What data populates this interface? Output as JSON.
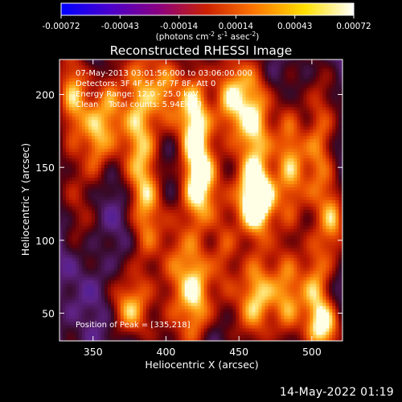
{
  "chart_data": {
    "type": "heatmap",
    "title": "Reconstructed RHESSI Image",
    "xlabel": "Heliocentric X (arcsec)",
    "ylabel": "Heliocentric Y (arcsec)",
    "xlim": [
      327,
      521
    ],
    "ylim": [
      31,
      224
    ],
    "xticks": [
      350,
      400,
      450,
      500
    ],
    "yticks": [
      50,
      100,
      150,
      200
    ],
    "annotations": [
      "07-May-2013 03:01:56.000 to 03:06:00.000",
      "Detectors: 3F 4F 5F 6F 7F 8F, Att 0",
      "Energy Range: 12.0 - 25.0 keV",
      "Clean    Total counts: 5.94E+03"
    ],
    "peak_label": "Position of Peak = [335,218]",
    "peak": [
      335,
      218
    ],
    "colorbar": {
      "min": -0.00072,
      "max": 0.00072,
      "tick_labels": [
        "-0.00072",
        "-0.00043",
        "-0.00014",
        "0.00014",
        "0.00043",
        "0.00072"
      ],
      "unit_label": "(photons cm",
      "unit_exp1": "-2",
      "unit_mid": " s",
      "unit_exp2": "-1",
      "unit_end": " asec",
      "unit_exp3": "-2",
      "unit_close": ")",
      "colors": [
        "#0000ff",
        "#4a00cc",
        "#8a0080",
        "#cc2200",
        "#ff7a00",
        "#ffe000",
        "#ffffff"
      ]
    },
    "sources": [
      {
        "x": 336,
        "y": 196,
        "sx": 8,
        "sy": 26,
        "a": 0.65
      },
      {
        "x": 352,
        "y": 168,
        "sx": 6,
        "sy": 22,
        "a": 0.55
      },
      {
        "x": 340,
        "y": 130,
        "sx": 8,
        "sy": 35,
        "a": 0.25
      },
      {
        "x": 362,
        "y": 195,
        "sx": 6,
        "sy": 24,
        "a": 0.5
      },
      {
        "x": 380,
        "y": 190,
        "sx": 9,
        "sy": 30,
        "a": 0.7
      },
      {
        "x": 386,
        "y": 120,
        "sx": 8,
        "sy": 40,
        "a": 0.62
      },
      {
        "x": 374,
        "y": 52,
        "sx": 9,
        "sy": 15,
        "a": 0.6
      },
      {
        "x": 405,
        "y": 70,
        "sx": 8,
        "sy": 30,
        "a": 0.45
      },
      {
        "x": 400,
        "y": 205,
        "sx": 8,
        "sy": 22,
        "a": 0.5
      },
      {
        "x": 420,
        "y": 185,
        "sx": 8,
        "sy": 28,
        "a": 0.85
      },
      {
        "x": 423,
        "y": 135,
        "sx": 9,
        "sy": 20,
        "a": 0.85
      },
      {
        "x": 420,
        "y": 60,
        "sx": 8,
        "sy": 28,
        "a": 0.75
      },
      {
        "x": 443,
        "y": 195,
        "sx": 8,
        "sy": 20,
        "a": 0.7
      },
      {
        "x": 440,
        "y": 92,
        "sx": 7,
        "sy": 22,
        "a": 0.5
      },
      {
        "x": 460,
        "y": 170,
        "sx": 9,
        "sy": 40,
        "a": 0.8
      },
      {
        "x": 464,
        "y": 128,
        "sx": 9,
        "sy": 15,
        "a": 0.9
      },
      {
        "x": 462,
        "y": 60,
        "sx": 10,
        "sy": 20,
        "a": 0.85
      },
      {
        "x": 485,
        "y": 150,
        "sx": 7,
        "sy": 40,
        "a": 0.6
      },
      {
        "x": 483,
        "y": 55,
        "sx": 7,
        "sy": 24,
        "a": 0.5
      },
      {
        "x": 505,
        "y": 165,
        "sx": 8,
        "sy": 30,
        "a": 0.65
      },
      {
        "x": 503,
        "y": 70,
        "sx": 8,
        "sy": 26,
        "a": 0.7
      },
      {
        "x": 515,
        "y": 115,
        "sx": 6,
        "sy": 18,
        "a": 0.5
      },
      {
        "x": 510,
        "y": 40,
        "sx": 8,
        "sy": 12,
        "a": 0.6
      }
    ],
    "background_level": -0.35,
    "min_level": -0.95
  },
  "date_stamp": "14-May-2022 01:19"
}
